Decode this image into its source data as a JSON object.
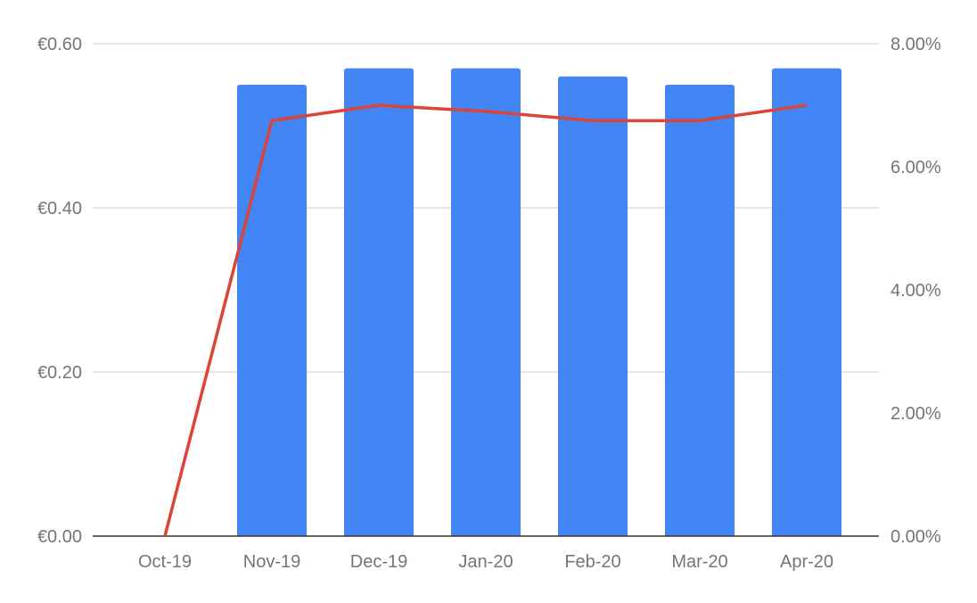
{
  "chart_data": {
    "type": "bar",
    "categories": [
      "Oct-19",
      "Nov-19",
      "Dec-19",
      "Jan-20",
      "Feb-20",
      "Mar-20",
      "Apr-20"
    ],
    "series": [
      {
        "type": "bar",
        "axis": "left",
        "color": "#4285f4",
        "values": [
          0,
          0.55,
          0.57,
          0.57,
          0.56,
          0.55,
          0.57
        ]
      },
      {
        "type": "line",
        "axis": "right",
        "color": "#db4437",
        "values": [
          0,
          6.75,
          7.0,
          6.9,
          6.75,
          6.75,
          7.0
        ]
      }
    ],
    "left_axis": {
      "ylim": [
        0,
        0.6
      ],
      "ticks": [
        "€0.00",
        "€0.20",
        "€0.40",
        "€0.60"
      ],
      "tick_values": [
        0,
        0.2,
        0.4,
        0.6
      ]
    },
    "right_axis": {
      "ylim": [
        0,
        8
      ],
      "ticks": [
        "0.00%",
        "2.00%",
        "4.00%",
        "6.00%",
        "8.00%"
      ],
      "tick_values": [
        0,
        2,
        4,
        6,
        8
      ]
    },
    "grid": true,
    "legend": "none"
  }
}
